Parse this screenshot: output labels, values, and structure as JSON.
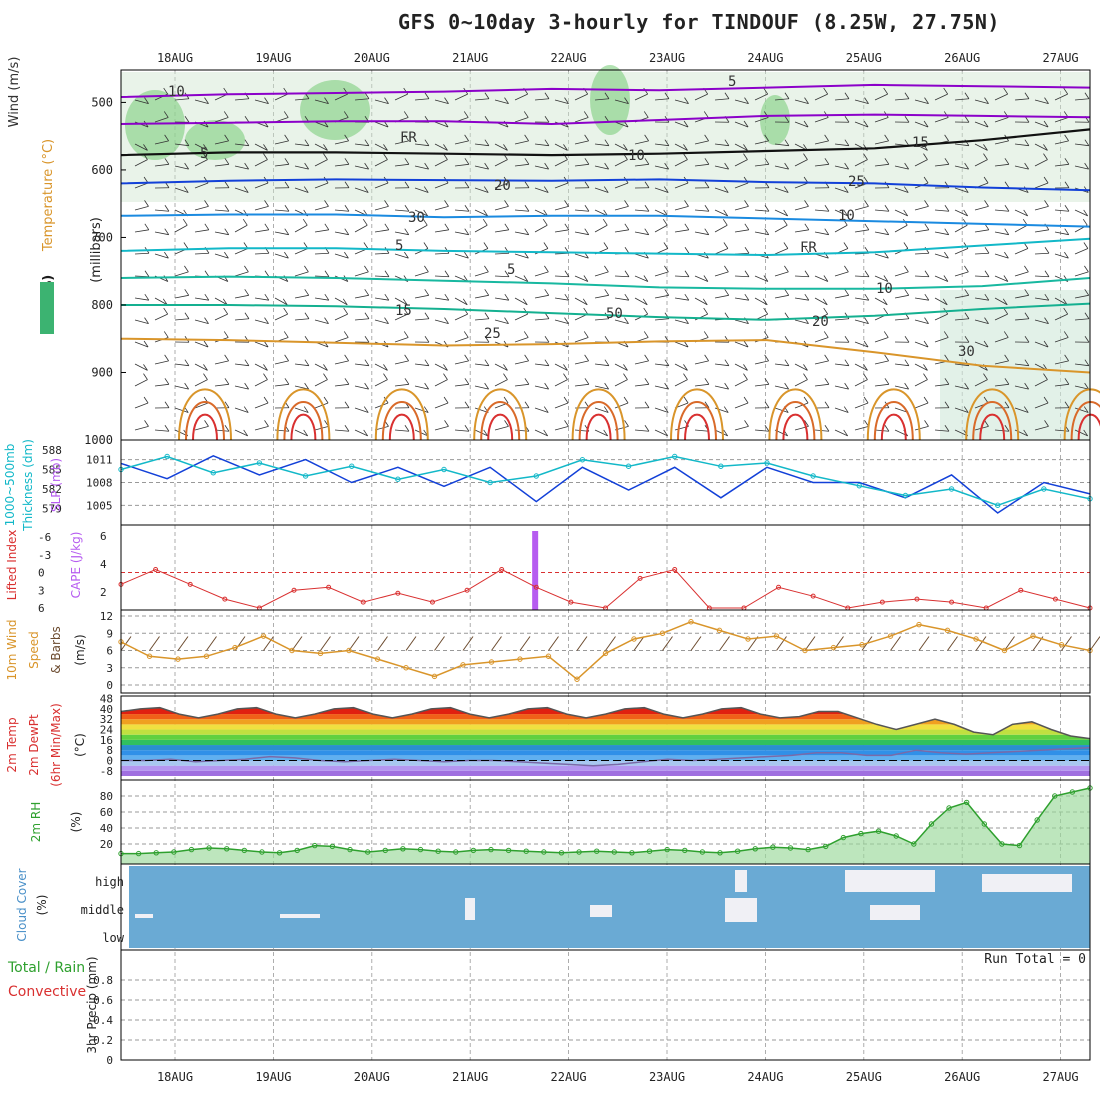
{
  "title": "GFS 0~10day 3-hourly for TINDOUF (8.25W, 27.75N)",
  "colors": {
    "grid": "#999999",
    "purple": "#8b00c9",
    "blue": "#1240d8",
    "cyan": "#12b8c8",
    "teal": "#18b8a0",
    "orange": "#d9952a",
    "red": "#d93030",
    "green": "#2ea02e",
    "cloud": "#6aaad4",
    "cape": "#b65cf0"
  },
  "chart_data": {
    "x_dates": [
      "18AUG",
      "19AUG",
      "20AUG",
      "21AUG",
      "22AUG",
      "23AUG",
      "24AUG",
      "25AUG",
      "26AUG",
      "27AUG"
    ],
    "panels": [
      {
        "type": "line",
        "name": "pressure-cross-section",
        "labels": [
          "Wind (m/s)",
          "Temperature (°C)",
          "RH (%)",
          "(millibars)"
        ],
        "y_ticks": [
          500,
          600,
          700,
          800,
          900,
          1000
        ],
        "contour_labels": [
          "10",
          "5",
          "FR",
          "5",
          "10",
          "15",
          "20",
          "25",
          "30",
          "10",
          "5",
          "FR",
          "5",
          "10",
          "15",
          "20",
          "25",
          "50",
          "30"
        ],
        "isotherms": [
          {
            "label": "-10",
            "p": [
              492,
              488,
              486,
              484,
              480,
              482,
              478,
              474,
              476,
              478
            ]
          },
          {
            "label": "-5",
            "p": [
              532,
              530,
              528,
              528,
              532,
              526,
              520,
              518,
              520,
              522
            ]
          },
          {
            "label": "FR",
            "p": [
              578,
              574,
              574,
              576,
              578,
              576,
              572,
              568,
              556,
              540
            ]
          },
          {
            "label": "5",
            "p": [
              620,
              616,
              614,
              615,
              616,
              614,
              618,
              620,
              626,
              630
            ]
          },
          {
            "label": "10",
            "p": [
              668,
              666,
              666,
              670,
              668,
              668,
              672,
              676,
              680,
              684
            ]
          },
          {
            "label": "15",
            "p": [
              720,
              716,
              716,
              720,
              722,
              724,
              726,
              722,
              712,
              702
            ]
          },
          {
            "label": "20",
            "p": [
              760,
              758,
              760,
              764,
              768,
              774,
              776,
              776,
              772,
              760
            ]
          },
          {
            "label": "25",
            "p": [
              800,
              800,
              802,
              806,
              812,
              818,
              822,
              816,
              806,
              798
            ]
          },
          {
            "label": "30",
            "p": [
              850,
              852,
              856,
              860,
              858,
              854,
              852,
              870,
              890,
              900
            ]
          }
        ]
      },
      {
        "type": "line",
        "name": "thickness-slp",
        "labels": [
          "1000~500mb",
          "Thickness (dm)",
          "SLP (mb)"
        ],
        "thickness_ticks": [
          579,
          582,
          585,
          588
        ],
        "slp_ticks": [
          1005,
          1008,
          1011
        ],
        "slp": [
          1010.5,
          1008.5,
          1011.5,
          1009,
          1011,
          1008,
          1010,
          1007.5,
          1010,
          1005.5,
          1010,
          1007,
          1010,
          1006,
          1010,
          1008,
          1008,
          1006,
          1009,
          1004,
          1008,
          1006.5
        ],
        "thickness": [
          585,
          587,
          584.5,
          586,
          584,
          585.5,
          583.5,
          585,
          583,
          584,
          586.5,
          585.5,
          587,
          585.5,
          586,
          584,
          582.5,
          581,
          582,
          579.5,
          582,
          580.5
        ]
      },
      {
        "type": "line",
        "name": "lifted-index-cape",
        "labels": [
          "Lifted Index",
          "CAPE (J/kg)"
        ],
        "li_ticks": [
          "-6",
          "-3",
          "0",
          "3",
          "6"
        ],
        "cape_ticks": [
          "2",
          "4",
          "6"
        ],
        "cape_bar_day": 3.65,
        "lifted_index": [
          2,
          -0.5,
          2,
          4.5,
          6,
          3,
          2.5,
          5,
          3.5,
          5,
          3,
          -0.5,
          2.5,
          5,
          6,
          1,
          -0.5,
          6,
          6,
          2.5,
          4,
          6,
          5,
          4.5,
          5,
          6,
          3,
          4.5,
          6
        ]
      },
      {
        "type": "line",
        "name": "wind-10m",
        "labels": [
          "10m Wind",
          "Speed",
          "& Barbs",
          "(m/s)"
        ],
        "y_ticks": [
          0,
          3,
          6,
          9,
          12
        ],
        "speed": [
          7.5,
          5,
          4.5,
          5,
          6.5,
          8.5,
          6,
          5.5,
          6,
          4.5,
          3,
          1.5,
          3.5,
          4,
          4.5,
          5,
          1,
          5.5,
          8,
          9,
          11,
          9.5,
          8,
          8.5,
          6,
          6.5,
          7,
          8.5,
          10.5,
          9.5,
          8,
          6,
          8.5,
          7,
          6
        ]
      },
      {
        "type": "area",
        "name": "temp-dewpoint",
        "labels": [
          "2m Temp",
          "2m DewPt",
          "(6hr Min/Max)",
          "(°C)"
        ],
        "y_ticks": [
          -8,
          0,
          8,
          16,
          24,
          32,
          40,
          48
        ],
        "temp": [
          38,
          40,
          41,
          36,
          33,
          36,
          40,
          41,
          36,
          33,
          36,
          40,
          41,
          36,
          33,
          36,
          40,
          41,
          36,
          33,
          36,
          40,
          41,
          36,
          33,
          36,
          40,
          41,
          36,
          33,
          36,
          40,
          41,
          36,
          33,
          34,
          38,
          38,
          33,
          28,
          24,
          28,
          32,
          28,
          22,
          20,
          28,
          30,
          24,
          19,
          17
        ],
        "dewpt": [
          0,
          0,
          1,
          -1,
          0,
          1,
          3,
          2,
          0,
          -1,
          0,
          1,
          0,
          -1,
          0,
          0,
          -1,
          -2,
          -3,
          -4,
          -3,
          -1,
          1,
          0,
          1,
          2,
          3,
          4,
          6,
          6,
          4,
          4,
          8,
          6,
          5,
          6,
          7,
          8,
          9,
          10
        ]
      },
      {
        "type": "area",
        "name": "relative-humidity",
        "labels": [
          "2m RH",
          "(%)"
        ],
        "y_ticks": [
          20,
          40,
          60,
          80
        ],
        "rh": [
          8,
          8,
          9,
          10,
          13,
          15,
          14,
          12,
          10,
          9,
          12,
          18,
          17,
          13,
          10,
          12,
          14,
          13,
          11,
          10,
          12,
          13,
          12,
          11,
          10,
          9,
          10,
          11,
          10,
          9,
          11,
          13,
          12,
          10,
          9,
          11,
          14,
          16,
          15,
          13,
          17,
          28,
          33,
          36,
          30,
          20,
          45,
          65,
          72,
          45,
          20,
          18,
          50,
          80,
          85,
          90
        ]
      },
      {
        "type": "heatmap",
        "name": "cloud-cover",
        "labels": [
          "Cloud Cover",
          "(%)"
        ],
        "levels": [
          "high",
          "middle",
          "low"
        ]
      },
      {
        "type": "bar",
        "name": "precipitation",
        "labels": [
          "Total / Rain",
          "Convective",
          "3hr Precip (mm)"
        ],
        "y_ticks": [
          "0",
          "0.2",
          "0.4",
          "0.6",
          "0.8"
        ],
        "run_total": "Run Total = 0"
      }
    ]
  }
}
